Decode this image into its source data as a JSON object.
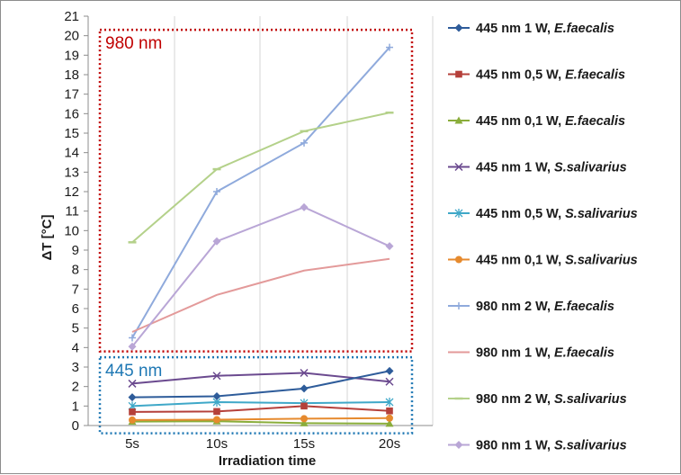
{
  "chart_data": {
    "type": "line",
    "categories": [
      "5s",
      "10s",
      "15s",
      "20s"
    ],
    "xlabel": "Irradiation time",
    "ylabel": "ΔT [°C]",
    "ylim": [
      0,
      21
    ],
    "yticks": [
      0,
      1,
      2,
      3,
      4,
      5,
      6,
      7,
      8,
      9,
      10,
      11,
      12,
      13,
      14,
      15,
      16,
      17,
      18,
      19,
      20,
      21
    ],
    "grid": "vertical",
    "legend": "right",
    "annotations": [
      {
        "label": "980 nm",
        "color": "#c00000",
        "y_range": [
          3.8,
          20.3
        ]
      },
      {
        "label": "445 nm",
        "color": "#1f78b4",
        "y_range": [
          -0.4,
          3.5
        ]
      }
    ],
    "series": [
      {
        "name": "445 nm 1 W, ",
        "species": "E.faecalis",
        "color": "#2e5c9a",
        "marker": "diamond",
        "values": [
          1.45,
          1.5,
          1.9,
          2.8
        ]
      },
      {
        "name": "445 nm 0,5 W, ",
        "species": "E.faecalis",
        "color": "#b5403a",
        "marker": "square",
        "values": [
          0.7,
          0.72,
          1.0,
          0.75
        ]
      },
      {
        "name": "445 nm 0,1 W, ",
        "species": "E.faecalis",
        "color": "#8aad3b",
        "marker": "triangle",
        "values": [
          0.2,
          0.22,
          0.12,
          0.1
        ]
      },
      {
        "name": "445 nm 1 W, ",
        "species": "S.salivarius",
        "color": "#6b4a8f",
        "marker": "x",
        "values": [
          2.15,
          2.55,
          2.7,
          2.25
        ]
      },
      {
        "name": "445 nm 0,5 W, ",
        "species": "S.salivarius",
        "color": "#3fa8c8",
        "marker": "star",
        "values": [
          1.0,
          1.2,
          1.15,
          1.2
        ]
      },
      {
        "name": "445 nm 0,1 W, ",
        "species": "S.salivarius",
        "color": "#e68a2e",
        "marker": "circle",
        "values": [
          0.28,
          0.3,
          0.35,
          0.38
        ]
      },
      {
        "name": "980 nm 2 W, ",
        "species": "E.faecalis",
        "color": "#8faadc",
        "marker": "plus",
        "values": [
          4.5,
          12.0,
          14.5,
          19.4
        ]
      },
      {
        "name": "980 nm 1 W, ",
        "species": "E.faecalis",
        "color": "#e39a9a",
        "marker": "none",
        "values": [
          4.8,
          6.7,
          7.95,
          8.55
        ]
      },
      {
        "name": "980 nm 2 W, ",
        "species": "S.salivarius",
        "color": "#b4d18a",
        "marker": "dash",
        "values": [
          9.4,
          13.15,
          15.1,
          16.05
        ]
      },
      {
        "name": "980 nm 1 W, ",
        "species": "S.salivarius",
        "color": "#b9a6d6",
        "marker": "diamond",
        "values": [
          4.05,
          9.45,
          11.2,
          9.2
        ]
      }
    ]
  }
}
